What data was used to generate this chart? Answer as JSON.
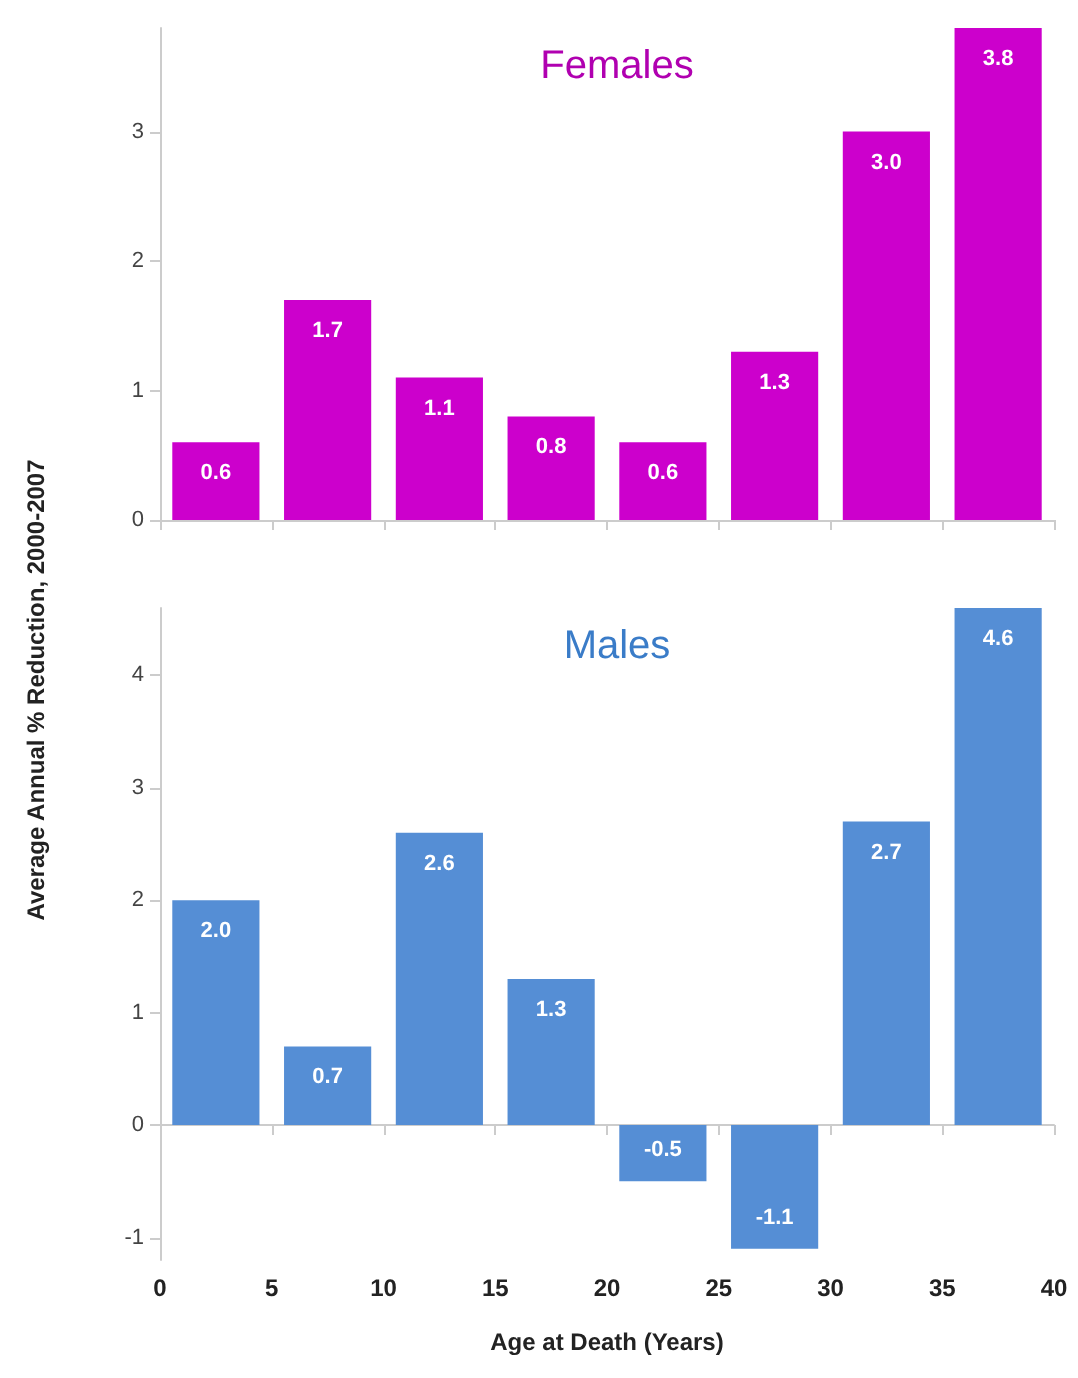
{
  "chart_data": [
    {
      "type": "bar",
      "title": "Females",
      "ylabel": "Average Annual % Reduction, 2000-2007",
      "x": [
        2.5,
        7.5,
        12.5,
        17.5,
        22.5,
        27.5,
        32.5,
        37.5
      ],
      "values": [
        0.6,
        1.7,
        1.1,
        0.8,
        0.6,
        1.3,
        3.0,
        3.8
      ],
      "value_labels": [
        "0.6",
        "1.7",
        "1.1",
        "0.8",
        "0.6",
        "1.3",
        "3.0",
        "3.8"
      ],
      "color": "#cc00cc",
      "xlim": [
        0,
        40
      ],
      "xticks": [
        0,
        5,
        10,
        15,
        20,
        25,
        30,
        35,
        40
      ],
      "ylim": [
        0,
        3.8
      ],
      "yticks": [
        0,
        1,
        2,
        3
      ],
      "tick_labels": "y"
    },
    {
      "type": "bar",
      "title": "Males",
      "xlabel": "Age at Death (Years)",
      "x": [
        2.5,
        7.5,
        12.5,
        17.5,
        22.5,
        27.5,
        32.5,
        37.5
      ],
      "values": [
        2.0,
        0.7,
        2.6,
        1.3,
        -0.5,
        -1.1,
        2.7,
        4.6
      ],
      "value_labels": [
        "2.0",
        "0.7",
        "2.6",
        "1.3",
        "-0.5",
        "-1.1",
        "2.7",
        "4.6"
      ],
      "color": "#558ed5",
      "xlim": [
        0,
        40
      ],
      "xticks": [
        0,
        5,
        10,
        15,
        20,
        25,
        30,
        35,
        40
      ],
      "ylim": [
        -1.2,
        4.6
      ],
      "yticks": [
        -1,
        0,
        1,
        2,
        3,
        4
      ]
    }
  ]
}
